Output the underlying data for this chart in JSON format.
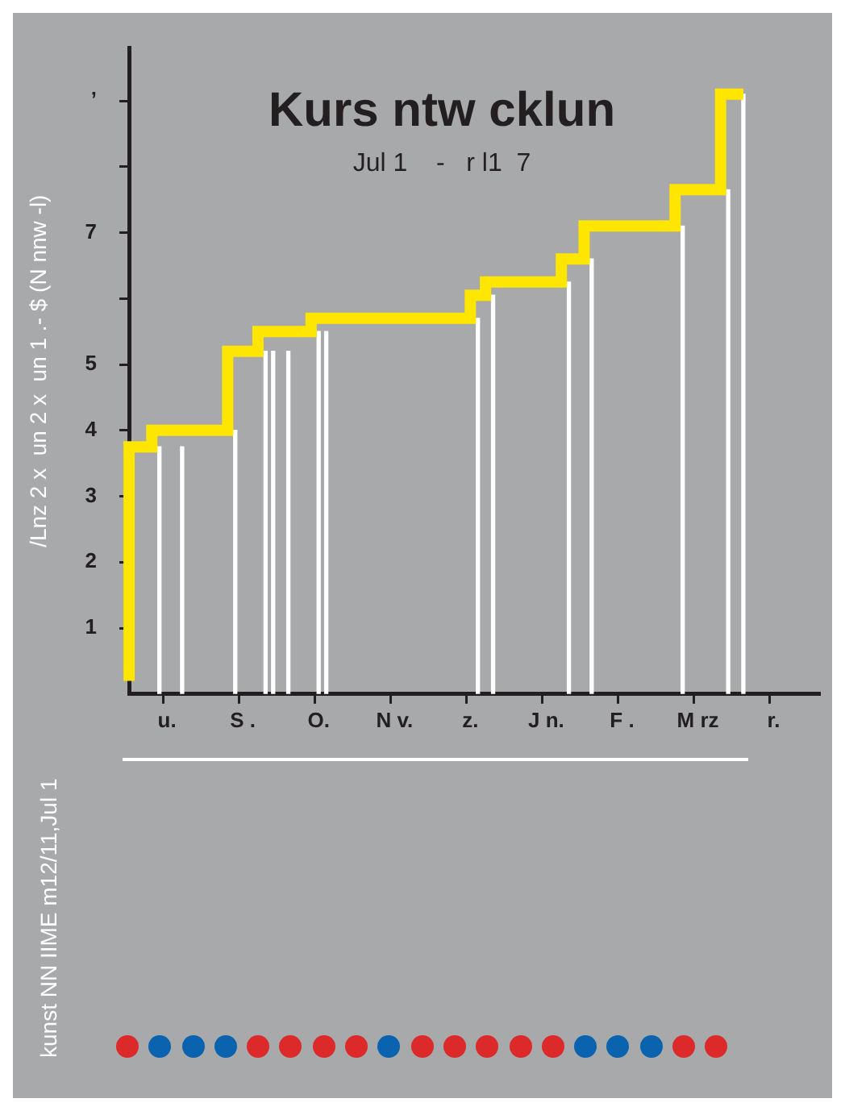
{
  "chart_data": {
    "type": "step",
    "title": "Kurs ntw cklun",
    "subtitle": "Jul 1    -   r l1  7",
    "ylabel": "/Lnz 2 x  un 2 x  un 1 .- $ (N nnw -l)",
    "categories": [
      null,
      null,
      null,
      null,
      null,
      "u.",
      null,
      null,
      null,
      null,
      null,
      null,
      null,
      null,
      null,
      "S .",
      null,
      null,
      null,
      null,
      null,
      null,
      null,
      null,
      null,
      "O.",
      null,
      null,
      null,
      null,
      null,
      null,
      null,
      null,
      null,
      "N v.",
      null,
      null,
      null,
      null,
      null,
      null,
      null,
      null,
      null,
      "z.",
      null,
      null,
      null,
      null,
      null,
      null,
      null,
      null,
      null,
      "J n.",
      null,
      null,
      null,
      null,
      null,
      null,
      null,
      null,
      null,
      "F .",
      null,
      null,
      null,
      null,
      null,
      null,
      null,
      null,
      null,
      "M rz",
      null,
      null,
      null,
      null,
      null,
      null,
      null,
      null,
      null,
      "r.",
      null,
      null,
      null,
      null,
      null,
      null
    ],
    "series": [
      {
        "type": "bar",
        "color": "#ffffff",
        "values": [
          null,
          null,
          null,
          null,
          3.75,
          null,
          null,
          3.75,
          null,
          null,
          null,
          null,
          null,
          null,
          4,
          null,
          null,
          null,
          5.2,
          5.2,
          null,
          5.2,
          null,
          null,
          null,
          5.5,
          5.5,
          null,
          null,
          null,
          null,
          null,
          null,
          null,
          null,
          null,
          null,
          null,
          null,
          null,
          null,
          null,
          null,
          null,
          null,
          null,
          5.7,
          null,
          6.05,
          null,
          null,
          null,
          null,
          null,
          null,
          null,
          null,
          null,
          6.25,
          null,
          null,
          6.6,
          null,
          null,
          null,
          null,
          null,
          null,
          null,
          null,
          null,
          null,
          null,
          7.1,
          null,
          null,
          null,
          null,
          null,
          7.65,
          null,
          9.1,
          null,
          null,
          null,
          null,
          null,
          null,
          null,
          null,
          null,
          null
        ]
      },
      {
        "color": "#ffe600",
        "values": [
          0.2,
          null,
          null,
          3.75,
          null,
          null,
          null,
          null,
          null,
          null,
          null,
          null,
          null,
          4,
          null,
          null,
          null,
          5.2,
          null,
          null,
          null,
          null,
          null,
          null,
          5.5,
          null,
          null,
          null,
          null,
          null,
          null,
          null,
          null,
          null,
          null,
          null,
          null,
          null,
          null,
          null,
          null,
          null,
          null,
          null,
          null,
          5.7,
          null,
          6.05,
          null,
          null,
          null,
          null,
          null,
          null,
          null,
          null,
          null,
          6.25,
          null,
          null,
          6.6,
          null,
          null,
          null,
          null,
          null,
          null,
          null,
          null,
          null,
          null,
          null,
          7.1,
          null,
          null,
          null,
          null,
          null,
          7.65,
          null,
          null,
          9.1,
          null,
          null,
          null,
          null,
          null,
          null,
          null,
          null,
          null,
          null
        ]
      }
    ],
    "ylim": [
      0,
      9.8
    ],
    "yticks": [
      1,
      2,
      3,
      4,
      5,
      {
        "value": 6,
        "label": null
      },
      7,
      {
        "value": 8,
        "label": null
      },
      {
        "value": 9,
        "label": "’"
      }
    ],
    "annotations": [
      "kunst NN IIME  m12/11,Jul 1"
    ],
    "grid": false,
    "legend": false,
    "marker": "none",
    "line_style": "solid"
  }
}
